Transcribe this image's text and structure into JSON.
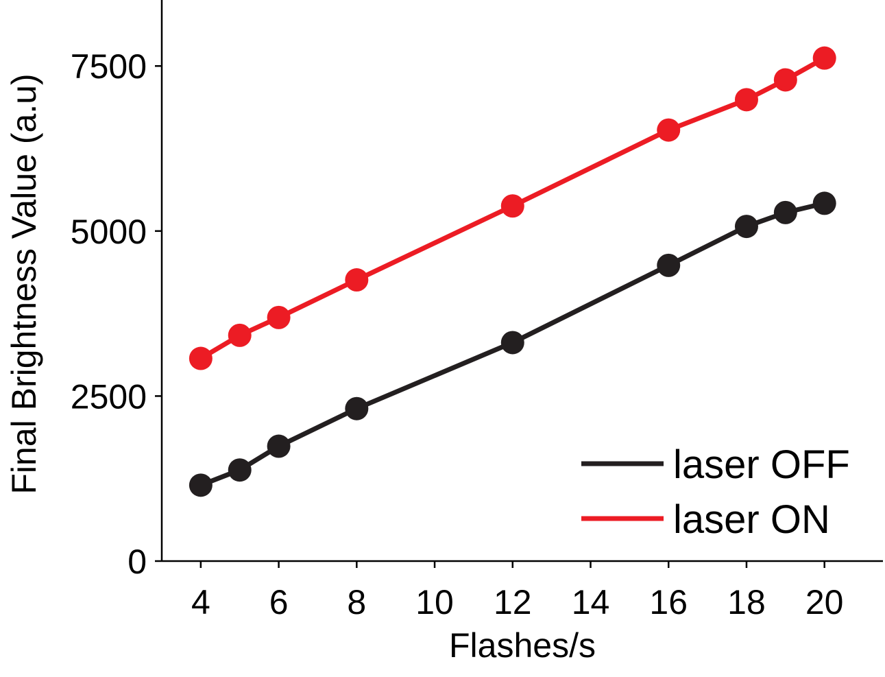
{
  "chart_data": {
    "type": "line",
    "xlabel": "Flashes/s",
    "ylabel": "Final Brightness Value (a.u)",
    "xlim": [
      3,
      21.5
    ],
    "ylim": [
      0,
      8500
    ],
    "x_ticks": [
      4,
      6,
      8,
      10,
      12,
      14,
      16,
      18,
      20
    ],
    "x_tick_labels": [
      "4",
      "6",
      "8",
      "10",
      "12",
      "14",
      "16",
      "18",
      "20"
    ],
    "y_ticks": [
      0,
      2500,
      5000,
      7500
    ],
    "y_tick_labels": [
      "0",
      "2500",
      "5000",
      "7500"
    ],
    "grid": false,
    "legend_position": "bottom-right",
    "series": [
      {
        "name": "laser OFF",
        "color": "#231f20",
        "x": [
          4,
          5,
          6,
          8,
          12,
          16,
          18,
          19,
          20
        ],
        "y": [
          1150,
          1380,
          1740,
          2310,
          3310,
          4480,
          5070,
          5280,
          5420
        ]
      },
      {
        "name": "laser ON",
        "color": "#ec1c24",
        "x": [
          4,
          5,
          6,
          8,
          12,
          16,
          18,
          19,
          20
        ],
        "y": [
          3070,
          3420,
          3690,
          4260,
          5380,
          6530,
          6990,
          7290,
          7620
        ]
      }
    ]
  }
}
